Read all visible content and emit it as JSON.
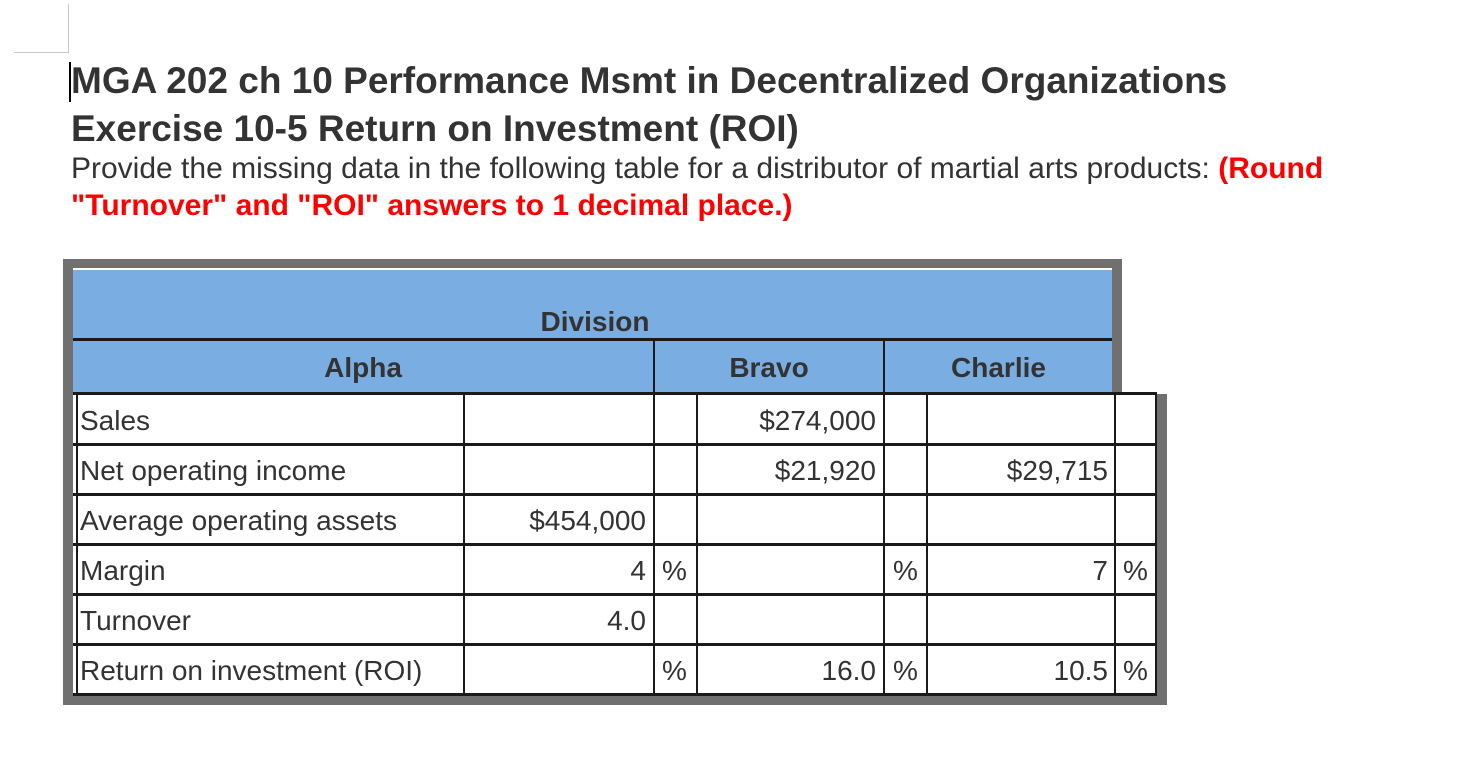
{
  "document": {
    "title_line1": "MGA 202 ch 10 Performance Msmt in Decentralized Organizations",
    "title_line2": "Exercise 10-5 Return on Investment (ROI)",
    "instructions": "Provide the missing data in the following table for a distributor of martial arts products: ",
    "instructions_emphasis": "(Round \"Turnover\" and \"ROI\" answers to 1 decimal place.)"
  },
  "table": {
    "group_header": "Division",
    "columns": [
      "Alpha",
      "Bravo",
      "Charlie"
    ],
    "rows": [
      {
        "label": "Sales",
        "alpha": "",
        "alpha_unit": "",
        "bravo": "$274,000",
        "bravo_unit": "",
        "charlie": "",
        "charlie_unit": ""
      },
      {
        "label": "Net operating income",
        "alpha": "",
        "alpha_unit": "",
        "bravo": "$21,920",
        "bravo_unit": "",
        "charlie": "$29,715",
        "charlie_unit": ""
      },
      {
        "label": "Average operating assets",
        "alpha": "$454,000",
        "alpha_unit": "",
        "bravo": "",
        "bravo_unit": "",
        "charlie": "",
        "charlie_unit": ""
      },
      {
        "label": "Margin",
        "alpha": "4",
        "alpha_unit": "%",
        "bravo": "",
        "bravo_unit": "%",
        "charlie": "7",
        "charlie_unit": "%"
      },
      {
        "label": "Turnover",
        "alpha": "4.0",
        "alpha_unit": "",
        "bravo": "",
        "bravo_unit": "",
        "charlie": "",
        "charlie_unit": ""
      },
      {
        "label": "Return on investment (ROI)",
        "alpha": "",
        "alpha_unit": "%",
        "bravo": "16.0",
        "bravo_unit": "%",
        "charlie": "10.5",
        "charlie_unit": "%"
      }
    ]
  },
  "colors": {
    "header_fill": "#7aaee3",
    "frame": "#707070",
    "emphasis": "#ff0000"
  }
}
